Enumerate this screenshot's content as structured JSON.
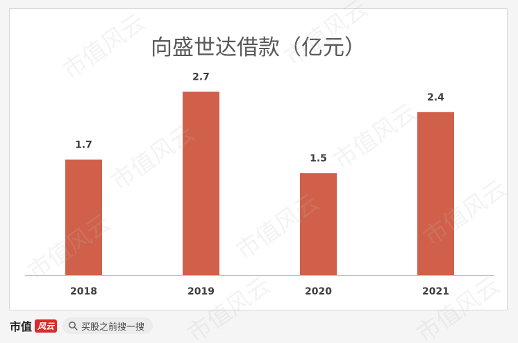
{
  "chart_data": {
    "type": "bar",
    "title": "向盛世达借款（亿元）",
    "categories": [
      "2018",
      "2019",
      "2020",
      "2021"
    ],
    "values": [
      1.7,
      2.7,
      1.5,
      2.4
    ],
    "value_labels": [
      "1.7",
      "2.7",
      "1.5",
      "2.4"
    ],
    "xlabel": "",
    "ylabel": "",
    "ylim": [
      0,
      3.0
    ],
    "grid": false,
    "legend": "none",
    "colors": {
      "bar": "#D0604A",
      "axis": "#BFBFBF",
      "text": "#3D3D3D",
      "title": "#595959"
    }
  },
  "watermark": "市值风云",
  "footer": {
    "brand": "市值",
    "brand_mark": "风云",
    "search_icon": "search-icon",
    "search_text": "买股之前搜一搜"
  }
}
